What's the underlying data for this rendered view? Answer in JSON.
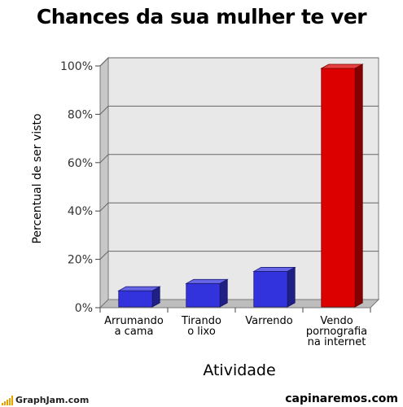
{
  "chart_data": {
    "type": "bar",
    "title": "Chances da sua mulher te ver",
    "xlabel": "Atividade",
    "ylabel": "Percentual de ser visto",
    "categories": [
      [
        "Arrumando",
        "a cama"
      ],
      [
        "Tirando",
        "o lixo"
      ],
      [
        "Varrendo"
      ],
      [
        "Vendo",
        "pornografia",
        "na internet"
      ]
    ],
    "values": [
      7,
      10,
      15,
      99
    ],
    "bar_colors": [
      "#3333dd",
      "#3333dd",
      "#3333dd",
      "#dd0000"
    ],
    "ylim": [
      0,
      100
    ],
    "yticks": [
      0,
      20,
      40,
      60,
      80,
      100
    ],
    "ytick_labels": [
      "0%",
      "20%",
      "40%",
      "60%",
      "80%",
      "100%"
    ],
    "grid": true,
    "style": "3d"
  },
  "footer": {
    "left": "GraphJam.com",
    "right": "capinaremos.com"
  }
}
